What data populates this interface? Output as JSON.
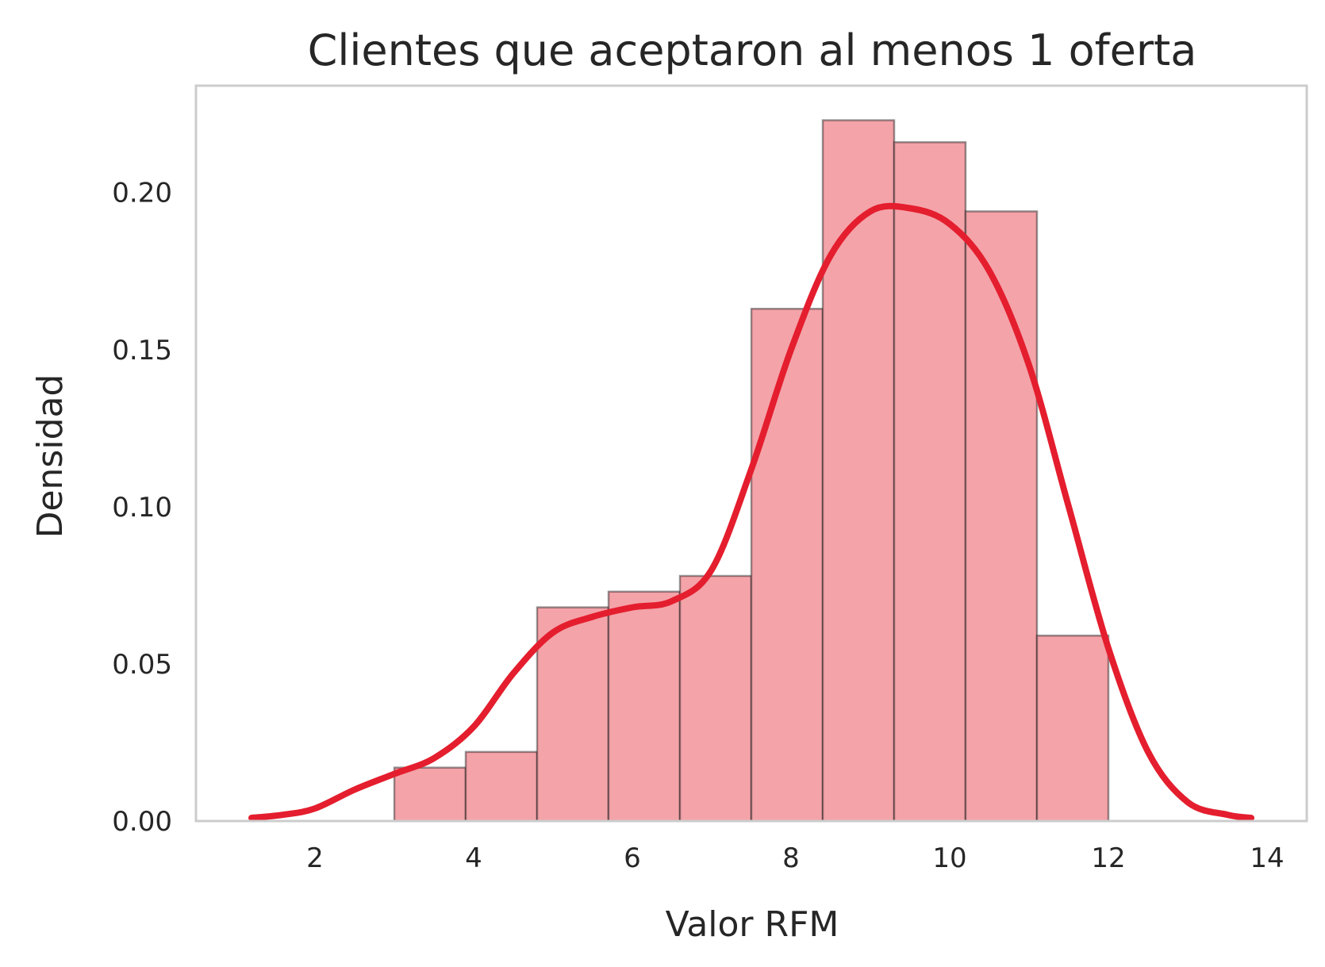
{
  "chart_data": {
    "type": "bar",
    "title": "Clientes que aceptaron al menos 1 oferta",
    "xlabel": "Valor RFM",
    "ylabel": "Densidad",
    "xlim": [
      0.5,
      14.5
    ],
    "ylim": [
      0,
      0.234
    ],
    "x_ticks": [
      2,
      4,
      6,
      8,
      10,
      12,
      14
    ],
    "x_tick_labels": [
      "2",
      "4",
      "6",
      "8",
      "10",
      "12",
      "14"
    ],
    "y_ticks": [
      0,
      0.05,
      0.1,
      0.15,
      0.2
    ],
    "y_tick_labels": [
      "0.00",
      "0.05",
      "0.10",
      "0.15",
      "0.20"
    ],
    "grid": false,
    "legend": false,
    "histogram": {
      "bin_edges": [
        3.0,
        3.9,
        4.8,
        5.7,
        6.6,
        7.5,
        8.4,
        9.3,
        10.2,
        11.1,
        12.0
      ],
      "densities": [
        0.017,
        0.022,
        0.068,
        0.073,
        0.078,
        0.163,
        0.223,
        0.216,
        0.194,
        0.059
      ],
      "color": "#f4a3a9"
    },
    "kde": {
      "color": "#e41e2e",
      "x": [
        1.2,
        1.6,
        2.0,
        2.5,
        3.0,
        3.5,
        4.0,
        4.5,
        5.0,
        5.5,
        6.0,
        6.5,
        7.0,
        7.5,
        8.0,
        8.5,
        9.0,
        9.5,
        10.0,
        10.5,
        11.0,
        11.5,
        12.0,
        12.5,
        13.0,
        13.5,
        13.8
      ],
      "y": [
        0.001,
        0.002,
        0.004,
        0.01,
        0.015,
        0.02,
        0.03,
        0.047,
        0.06,
        0.065,
        0.068,
        0.07,
        0.08,
        0.112,
        0.15,
        0.18,
        0.194,
        0.195,
        0.19,
        0.175,
        0.145,
        0.1,
        0.055,
        0.022,
        0.006,
        0.002,
        0.001
      ]
    }
  }
}
